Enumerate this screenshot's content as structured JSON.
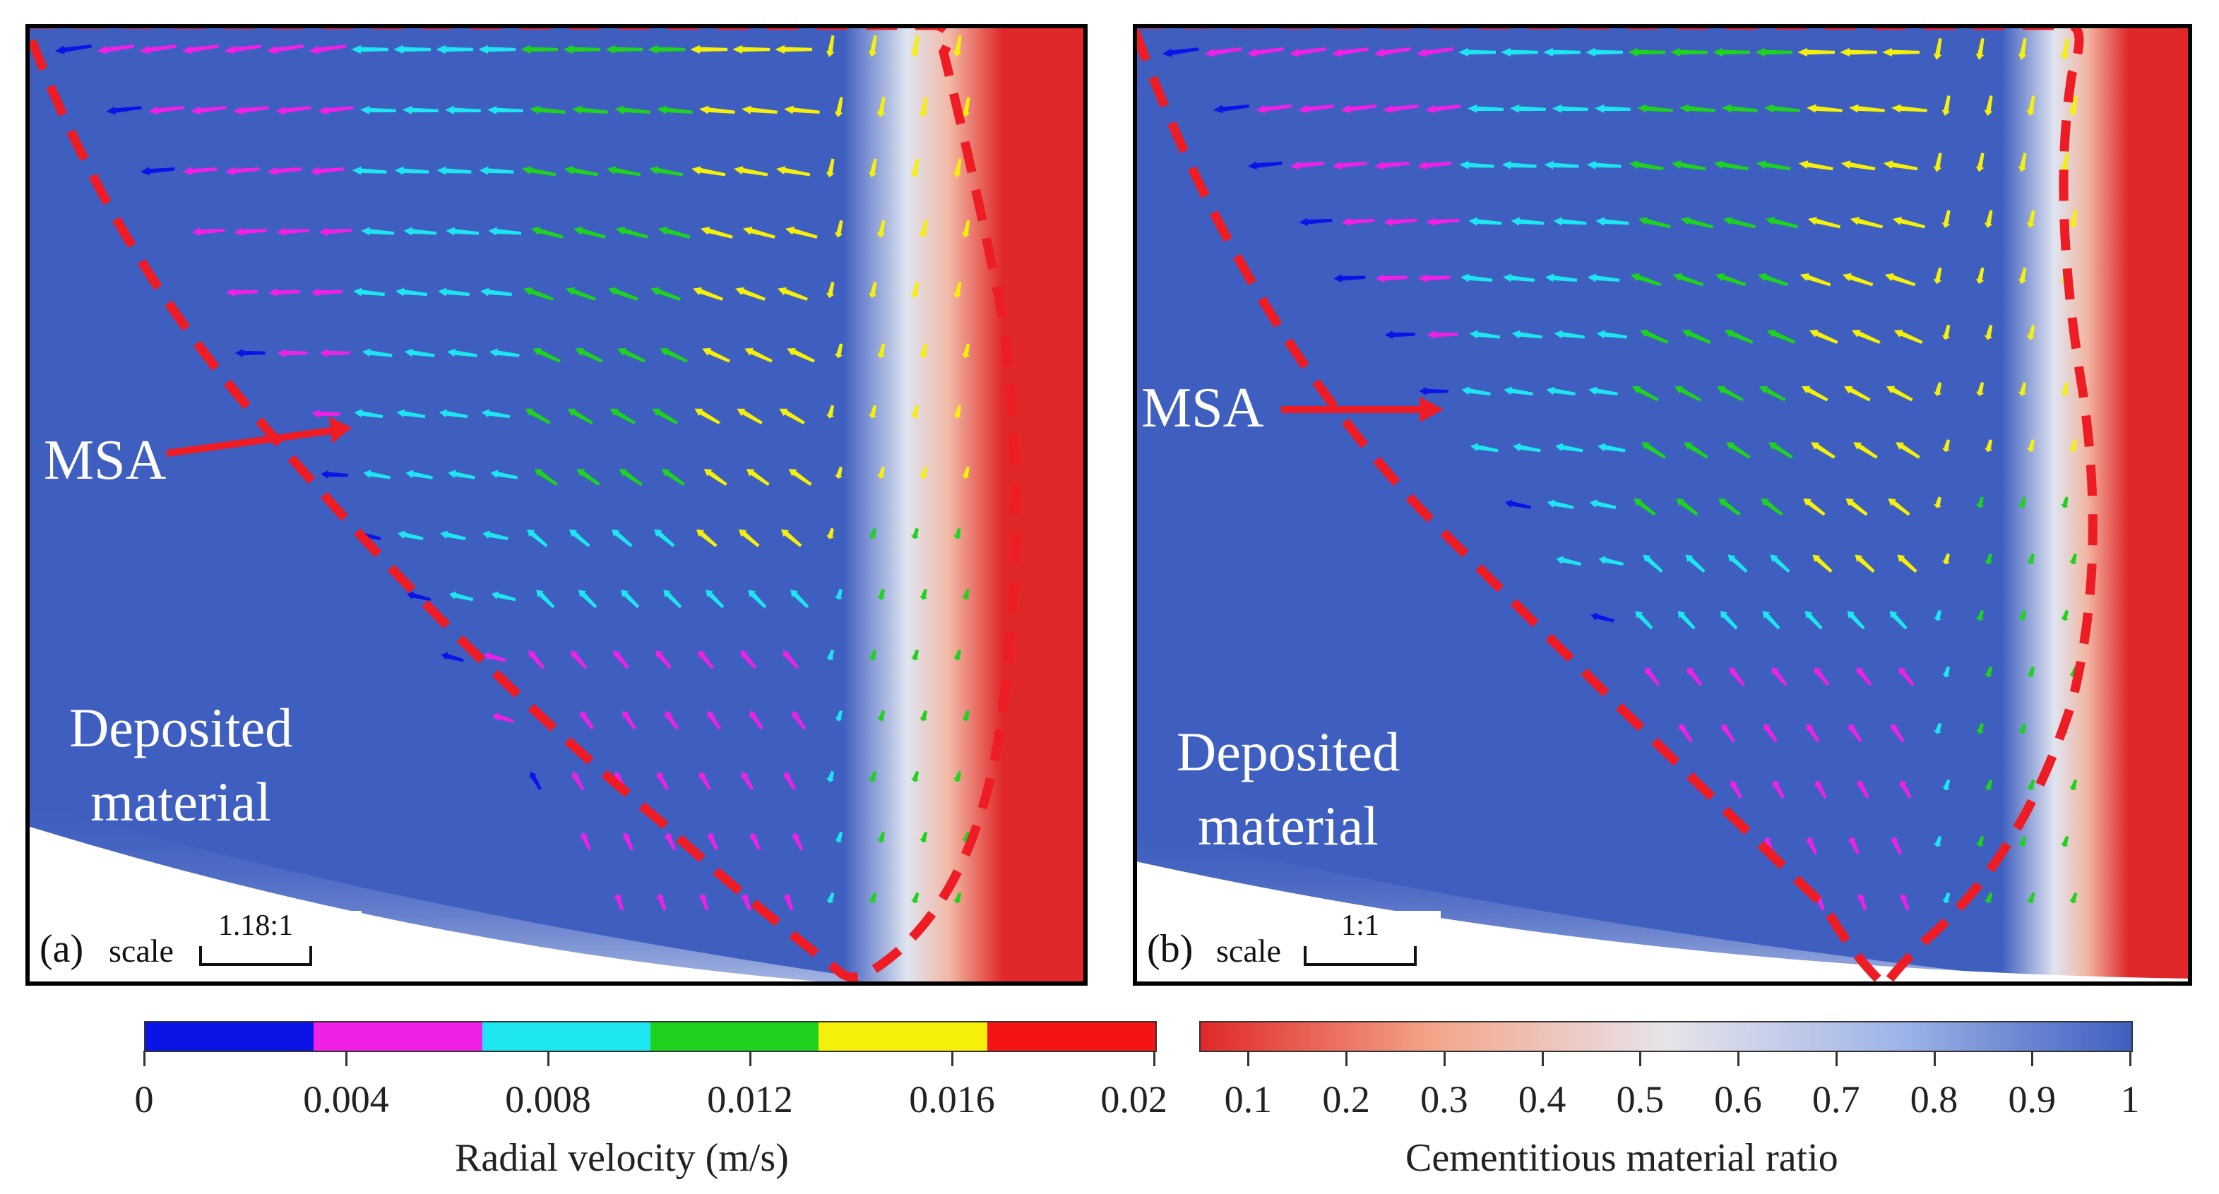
{
  "figure": {
    "colors": {
      "background_material": "#3f5fc0",
      "cement": "#e0282a",
      "boundary": "#ee1c24",
      "arrow_highlight": "#ee1c24"
    }
  },
  "panels": [
    {
      "id": "a",
      "label": "(a)",
      "scale_word": "scale",
      "scale_ratio": "1.18:1",
      "msa_label": "MSA",
      "deposited_label": [
        "Deposited",
        "material"
      ]
    },
    {
      "id": "b",
      "label": "(b)",
      "scale_word": "scale",
      "scale_ratio": "1:1",
      "msa_label": "MSA",
      "deposited_label": [
        "Deposited",
        "material"
      ]
    }
  ],
  "velocity_colorbar": {
    "title": "Radial velocity (m/s)",
    "ticks": [
      "0",
      "0.004",
      "0.008",
      "0.012",
      "0.016",
      "0.02"
    ],
    "bands": [
      "#0a14e6",
      "#f020e6",
      "#1ee6f0",
      "#1ed21e",
      "#f5f00a",
      "#f51414"
    ]
  },
  "ratio_colorbar": {
    "title": "Cementitious material ratio",
    "ticks": [
      "0.1",
      "0.2",
      "0.3",
      "0.4",
      "0.5",
      "0.6",
      "0.7",
      "0.8",
      "0.9",
      "1"
    ],
    "gradient_stops": [
      "#e0282a",
      "#f4a58a",
      "#e8e4ea",
      "#9fb5e8",
      "#3f5fc0"
    ]
  }
}
